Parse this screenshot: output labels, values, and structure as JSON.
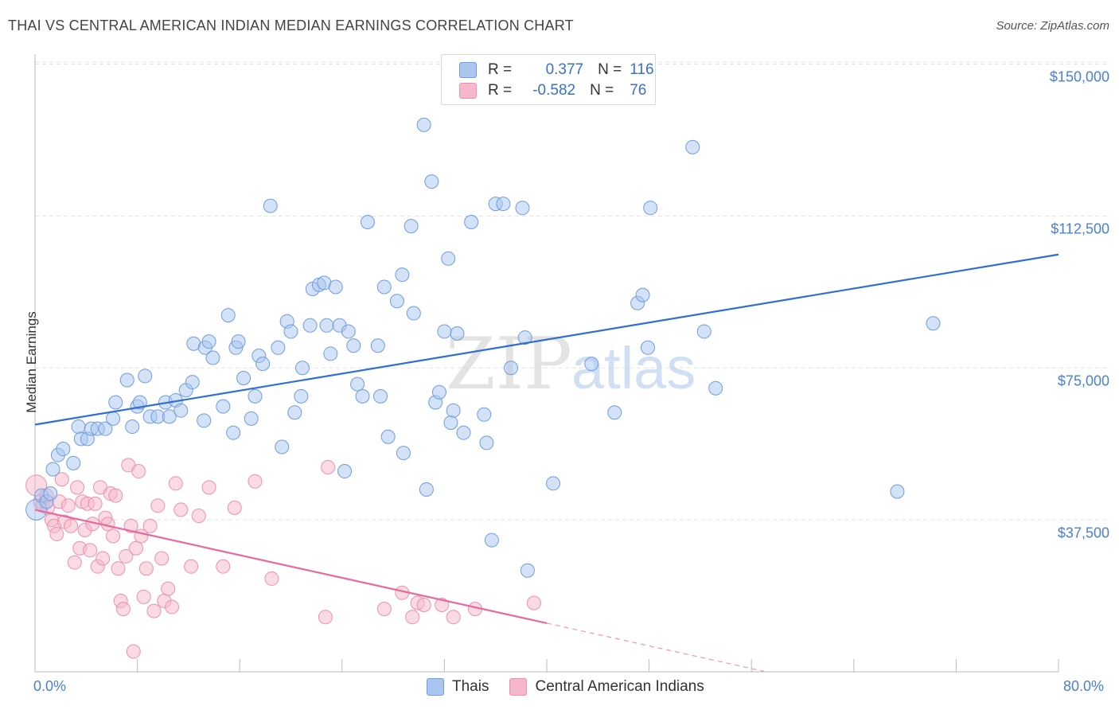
{
  "header": {
    "title": "THAI VS CENTRAL AMERICAN INDIAN MEDIAN EARNINGS CORRELATION CHART",
    "source": "Source: ZipAtlas.com"
  },
  "watermark": {
    "part1": "ZIP",
    "part2": "atlas"
  },
  "legend": {
    "rows": [
      {
        "r_label": "R =",
        "r_value": "0.377",
        "n_label": "N =",
        "n_value": "116",
        "color": "#a8c6f0"
      },
      {
        "r_label": "R =",
        "r_value": "-0.582",
        "n_label": "N =",
        "n_value": "76",
        "color": "#f5b7c9"
      }
    ]
  },
  "bottom_legend": {
    "series1": "Thais",
    "series2": "Central American Indians"
  },
  "axis": {
    "ylabel": "Median Earnings",
    "x_min_label": "0.0%",
    "x_max_label": "80.0%",
    "y_ticks": [
      "$37,500",
      "$75,000",
      "$112,500",
      "$150,000"
    ]
  },
  "colors": {
    "blue_fill": "#a8c6f0",
    "blue_stroke": "#6f9de0",
    "blue_line": "#2f6fd0",
    "pink_fill": "#f5b7c9",
    "pink_stroke": "#ee8fae",
    "pink_line": "#e8689a"
  },
  "chart_data": {
    "type": "scatter",
    "title": "THAI VS CENTRAL AMERICAN INDIAN MEDIAN EARNINGS CORRELATION CHART",
    "xlabel": "",
    "ylabel": "Median Earnings",
    "xlim": [
      0,
      80
    ],
    "ylim": [
      0,
      150000
    ],
    "series": [
      {
        "name": "Thais",
        "R": 0.377,
        "N": 116,
        "trend": {
          "x": [
            0,
            80
          ],
          "y": [
            61000,
            103000
          ]
        },
        "points": [
          [
            0.1,
            40000
          ],
          [
            0.5,
            43500
          ],
          [
            0.9,
            42000
          ],
          [
            1.2,
            44000
          ],
          [
            1.4,
            50000
          ],
          [
            1.8,
            53500
          ],
          [
            2.2,
            55000
          ],
          [
            3.0,
            51500
          ],
          [
            3.4,
            60500
          ],
          [
            3.6,
            57500
          ],
          [
            4.1,
            57500
          ],
          [
            4.4,
            60000
          ],
          [
            4.9,
            60000
          ],
          [
            5.5,
            60000
          ],
          [
            6.1,
            62500
          ],
          [
            6.3,
            66500
          ],
          [
            7.2,
            72000
          ],
          [
            7.6,
            60500
          ],
          [
            8.0,
            65500
          ],
          [
            8.2,
            66500
          ],
          [
            8.6,
            73000
          ],
          [
            9.0,
            63000
          ],
          [
            9.6,
            63000
          ],
          [
            10.2,
            66500
          ],
          [
            10.5,
            63000
          ],
          [
            11.0,
            67000
          ],
          [
            11.4,
            64500
          ],
          [
            11.8,
            69500
          ],
          [
            12.3,
            71500
          ],
          [
            12.4,
            81000
          ],
          [
            13.2,
            62000
          ],
          [
            13.3,
            80000
          ],
          [
            13.6,
            81500
          ],
          [
            13.9,
            77500
          ],
          [
            14.7,
            65500
          ],
          [
            15.1,
            88000
          ],
          [
            15.5,
            59000
          ],
          [
            15.7,
            80000
          ],
          [
            15.9,
            81500
          ],
          [
            16.3,
            72500
          ],
          [
            16.9,
            62500
          ],
          [
            17.2,
            68000
          ],
          [
            17.5,
            78000
          ],
          [
            17.8,
            76000
          ],
          [
            18.4,
            115000
          ],
          [
            19.0,
            80000
          ],
          [
            19.3,
            55500
          ],
          [
            19.7,
            86500
          ],
          [
            20.0,
            84000
          ],
          [
            20.3,
            64000
          ],
          [
            20.8,
            68000
          ],
          [
            20.9,
            75000
          ],
          [
            21.5,
            85500
          ],
          [
            21.7,
            94500
          ],
          [
            22.2,
            95500
          ],
          [
            22.6,
            96000
          ],
          [
            22.8,
            85500
          ],
          [
            23.1,
            78500
          ],
          [
            23.5,
            95000
          ],
          [
            23.8,
            85500
          ],
          [
            24.2,
            49500
          ],
          [
            24.5,
            84000
          ],
          [
            24.9,
            80500
          ],
          [
            25.2,
            71000
          ],
          [
            25.6,
            68000
          ],
          [
            26.0,
            111000
          ],
          [
            26.8,
            80500
          ],
          [
            27.0,
            68000
          ],
          [
            27.3,
            95000
          ],
          [
            27.6,
            58000
          ],
          [
            28.3,
            91500
          ],
          [
            28.7,
            98000
          ],
          [
            28.8,
            54000
          ],
          [
            29.4,
            110000
          ],
          [
            29.6,
            88500
          ],
          [
            30.4,
            135000
          ],
          [
            30.6,
            45000
          ],
          [
            31.0,
            121000
          ],
          [
            31.3,
            66500
          ],
          [
            31.6,
            69000
          ],
          [
            32.0,
            84000
          ],
          [
            32.3,
            102000
          ],
          [
            32.5,
            61500
          ],
          [
            32.7,
            64500
          ],
          [
            33.0,
            83500
          ],
          [
            33.5,
            59000
          ],
          [
            34.1,
            111000
          ],
          [
            35.1,
            63500
          ],
          [
            35.3,
            56500
          ],
          [
            35.7,
            32500
          ],
          [
            36.0,
            115500
          ],
          [
            36.6,
            115500
          ],
          [
            37.2,
            75000
          ],
          [
            38.1,
            114500
          ],
          [
            38.3,
            82500
          ],
          [
            38.5,
            25000
          ],
          [
            40.5,
            46500
          ],
          [
            43.5,
            76000
          ],
          [
            45.3,
            64000
          ],
          [
            47.1,
            91000
          ],
          [
            47.5,
            93000
          ],
          [
            47.9,
            80000
          ],
          [
            48.1,
            114500
          ],
          [
            51.4,
            129500
          ],
          [
            52.3,
            84000
          ],
          [
            53.2,
            70000
          ],
          [
            67.4,
            44500
          ],
          [
            70.2,
            86000
          ]
        ]
      },
      {
        "name": "Central American Indians",
        "R": -0.582,
        "N": 76,
        "trend": {
          "x": [
            0,
            40
          ],
          "y": [
            40000,
            12000
          ]
        },
        "points": [
          [
            0.1,
            46000
          ],
          [
            0.4,
            42000
          ],
          [
            0.6,
            41000
          ],
          [
            0.9,
            43500
          ],
          [
            1.0,
            40500
          ],
          [
            1.3,
            37500
          ],
          [
            1.5,
            36000
          ],
          [
            1.7,
            34000
          ],
          [
            1.9,
            42000
          ],
          [
            2.1,
            47500
          ],
          [
            2.3,
            37000
          ],
          [
            2.6,
            41000
          ],
          [
            2.8,
            36000
          ],
          [
            3.1,
            27000
          ],
          [
            3.3,
            45500
          ],
          [
            3.5,
            30500
          ],
          [
            3.7,
            42000
          ],
          [
            3.9,
            35000
          ],
          [
            4.1,
            41500
          ],
          [
            4.3,
            30000
          ],
          [
            4.5,
            36500
          ],
          [
            4.7,
            41500
          ],
          [
            4.9,
            26000
          ],
          [
            5.1,
            45500
          ],
          [
            5.3,
            28000
          ],
          [
            5.5,
            38000
          ],
          [
            5.7,
            36500
          ],
          [
            5.9,
            44000
          ],
          [
            6.1,
            33500
          ],
          [
            6.3,
            43500
          ],
          [
            6.5,
            25500
          ],
          [
            6.7,
            17500
          ],
          [
            6.9,
            15500
          ],
          [
            7.1,
            28500
          ],
          [
            7.3,
            51000
          ],
          [
            7.5,
            36000
          ],
          [
            7.7,
            5000
          ],
          [
            7.9,
            30500
          ],
          [
            8.1,
            49500
          ],
          [
            8.3,
            33500
          ],
          [
            8.5,
            18500
          ],
          [
            8.7,
            25500
          ],
          [
            9.0,
            36000
          ],
          [
            9.3,
            15000
          ],
          [
            9.6,
            41000
          ],
          [
            9.9,
            28000
          ],
          [
            10.1,
            17500
          ],
          [
            10.4,
            20500
          ],
          [
            10.7,
            16000
          ],
          [
            11.0,
            46500
          ],
          [
            11.4,
            40000
          ],
          [
            12.2,
            26000
          ],
          [
            12.8,
            38500
          ],
          [
            13.6,
            45500
          ],
          [
            14.7,
            26000
          ],
          [
            15.6,
            40500
          ],
          [
            17.2,
            47000
          ],
          [
            18.5,
            23000
          ],
          [
            22.7,
            13500
          ],
          [
            22.9,
            50500
          ],
          [
            27.3,
            15500
          ],
          [
            28.7,
            19500
          ],
          [
            29.5,
            13500
          ],
          [
            29.9,
            17000
          ],
          [
            30.4,
            16500
          ],
          [
            31.8,
            16500
          ],
          [
            32.7,
            13500
          ],
          [
            34.4,
            15500
          ],
          [
            39.0,
            17000
          ]
        ]
      }
    ]
  }
}
